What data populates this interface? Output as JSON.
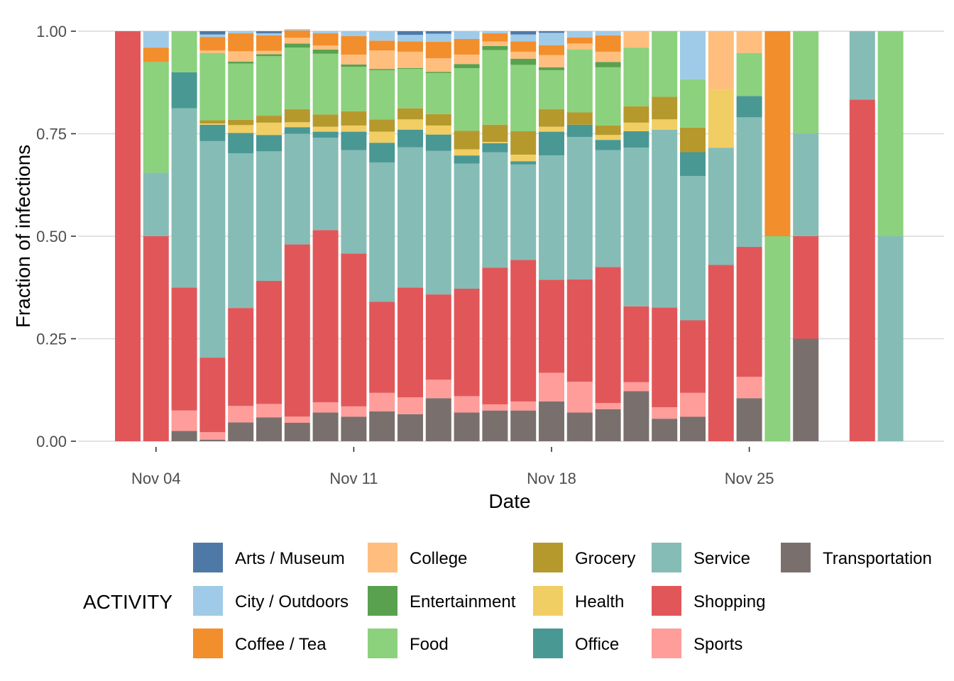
{
  "chart_data": {
    "type": "bar",
    "stacked": true,
    "xlabel": "Date",
    "ylabel": "Fraction of infections",
    "ylim": [
      0,
      1
    ],
    "y_ticks": [
      "0.00",
      "0.25",
      "0.50",
      "0.75",
      "1.00"
    ],
    "y_tick_values": [
      0,
      0.25,
      0.5,
      0.75,
      1.0
    ],
    "x_tick_labels": [
      "Nov 04",
      "Nov 11",
      "Nov 18",
      "Nov 25"
    ],
    "x_tick_days": [
      4,
      11,
      18,
      25
    ],
    "grid": true,
    "legend_title": "ACTIVITY",
    "legend_position": "bottom",
    "stack_order_bottom_to_top": [
      "Transportation",
      "Sports",
      "Shopping",
      "Service",
      "Office",
      "Health",
      "Grocery",
      "Food",
      "Entertainment",
      "College",
      "Coffee / Tea",
      "City / Outdoors",
      "Arts / Museum"
    ],
    "legend_order": [
      "Arts / Museum",
      "City / Outdoors",
      "Coffee / Tea",
      "College",
      "Entertainment",
      "Food",
      "Grocery",
      "Health",
      "Office",
      "Service",
      "Shopping",
      "Sports",
      "Transportation"
    ],
    "colors": {
      "Arts / Museum": "#4e79a7",
      "City / Outdoors": "#a0cbe8",
      "Coffee / Tea": "#f28e2b",
      "College": "#ffbe7d",
      "Entertainment": "#59a14f",
      "Food": "#8cd17d",
      "Grocery": "#b6992d",
      "Health": "#f1ce63",
      "Office": "#499894",
      "Service": "#86bcb6",
      "Shopping": "#e15759",
      "Sports": "#ff9d9a",
      "Transportation": "#79706e"
    },
    "days": [
      {
        "date": "Nov 03",
        "values": {
          "Shopping": 1.0
        }
      },
      {
        "date": "Nov 04",
        "values": {
          "Shopping": 0.5,
          "Service": 0.155,
          "Food": 0.27,
          "Coffee / Tea": 0.035,
          "City / Outdoors": 0.04
        }
      },
      {
        "date": "Nov 05",
        "values": {
          "Transportation": 0.025,
          "Sports": 0.05,
          "Shopping": 0.3,
          "Service": 0.437,
          "Office": 0.088,
          "Food": 0.1
        }
      },
      {
        "date": "Nov 06",
        "values": {
          "Transportation": 0.004,
          "Sports": 0.018,
          "Shopping": 0.182,
          "Service": 0.528,
          "Office": 0.04,
          "Health": 0.003,
          "Grocery": 0.008,
          "Food": 0.164,
          "College": 0.006,
          "Coffee / Tea": 0.033,
          "City / Outdoors": 0.006,
          "Arts / Museum": 0.008
        }
      },
      {
        "date": "Nov 07",
        "values": {
          "Transportation": 0.046,
          "Sports": 0.04,
          "Shopping": 0.239,
          "Service": 0.377,
          "Office": 0.05,
          "Health": 0.019,
          "Grocery": 0.013,
          "Food": 0.137,
          "Entertainment": 0.005,
          "College": 0.025,
          "Coffee / Tea": 0.044,
          "City / Outdoors": 0.005
        }
      },
      {
        "date": "Nov 08",
        "values": {
          "Transportation": 0.058,
          "Sports": 0.033,
          "Shopping": 0.3,
          "Service": 0.316,
          "Office": 0.04,
          "Health": 0.03,
          "Grocery": 0.017,
          "Food": 0.145,
          "Entertainment": 0.005,
          "College": 0.008,
          "Coffee / Tea": 0.038,
          "City / Outdoors": 0.005,
          "Arts / Museum": 0.005
        }
      },
      {
        "date": "Nov 09",
        "values": {
          "Transportation": 0.045,
          "Sports": 0.015,
          "Shopping": 0.42,
          "Service": 0.27,
          "Office": 0.016,
          "Health": 0.012,
          "Grocery": 0.032,
          "Food": 0.15,
          "Entertainment": 0.01,
          "College": 0.014,
          "Coffee / Tea": 0.018,
          "City / Outdoors": 0.003
        }
      },
      {
        "date": "Nov 10",
        "values": {
          "Transportation": 0.07,
          "Sports": 0.025,
          "Shopping": 0.42,
          "Service": 0.225,
          "Office": 0.015,
          "Health": 0.012,
          "Grocery": 0.03,
          "Food": 0.148,
          "Entertainment": 0.01,
          "College": 0.01,
          "Coffee / Tea": 0.03,
          "City / Outdoors": 0.005
        }
      },
      {
        "date": "Nov 11",
        "values": {
          "Transportation": 0.06,
          "Sports": 0.025,
          "Shopping": 0.373,
          "Service": 0.252,
          "Office": 0.045,
          "Health": 0.015,
          "Grocery": 0.035,
          "Food": 0.108,
          "Entertainment": 0.006,
          "College": 0.024,
          "Coffee / Tea": 0.045,
          "City / Outdoors": 0.012
        }
      },
      {
        "date": "Nov 12",
        "values": {
          "Transportation": 0.073,
          "Sports": 0.045,
          "Shopping": 0.222,
          "Service": 0.34,
          "Office": 0.048,
          "Health": 0.027,
          "Grocery": 0.03,
          "Food": 0.12,
          "Entertainment": 0.003,
          "College": 0.045,
          "Coffee / Tea": 0.024,
          "City / Outdoors": 0.023
        }
      },
      {
        "date": "Nov 13",
        "values": {
          "Transportation": 0.066,
          "Sports": 0.041,
          "Shopping": 0.268,
          "Service": 0.342,
          "Office": 0.043,
          "Health": 0.025,
          "Grocery": 0.027,
          "Food": 0.096,
          "Entertainment": 0.002,
          "College": 0.04,
          "Coffee / Tea": 0.025,
          "City / Outdoors": 0.016,
          "Arts / Museum": 0.009
        }
      },
      {
        "date": "Nov 14",
        "values": {
          "Transportation": 0.105,
          "Sports": 0.045,
          "Shopping": 0.208,
          "Service": 0.35,
          "Office": 0.04,
          "Health": 0.022,
          "Grocery": 0.028,
          "Food": 0.1,
          "Entertainment": 0.003,
          "College": 0.033,
          "Coffee / Tea": 0.04,
          "City / Outdoors": 0.02,
          "Arts / Museum": 0.006
        }
      },
      {
        "date": "Nov 15",
        "values": {
          "Transportation": 0.07,
          "Sports": 0.04,
          "Shopping": 0.262,
          "Service": 0.305,
          "Office": 0.02,
          "Health": 0.015,
          "Grocery": 0.045,
          "Food": 0.153,
          "Entertainment": 0.01,
          "College": 0.023,
          "Coffee / Tea": 0.038,
          "City / Outdoors": 0.019
        }
      },
      {
        "date": "Nov 16",
        "values": {
          "Transportation": 0.075,
          "Sports": 0.015,
          "Shopping": 0.333,
          "Service": 0.282,
          "Office": 0.022,
          "Health": 0.003,
          "Grocery": 0.042,
          "Food": 0.182,
          "Entertainment": 0.01,
          "College": 0.011,
          "Coffee / Tea": 0.02,
          "City / Outdoors": 0.005
        }
      },
      {
        "date": "Nov 17",
        "values": {
          "Transportation": 0.075,
          "Sports": 0.022,
          "Shopping": 0.345,
          "Service": 0.233,
          "Office": 0.008,
          "Health": 0.016,
          "Grocery": 0.057,
          "Food": 0.162,
          "Entertainment": 0.015,
          "College": 0.017,
          "Coffee / Tea": 0.025,
          "City / Outdoors": 0.017,
          "Arts / Museum": 0.008
        }
      },
      {
        "date": "Nov 18",
        "values": {
          "Transportation": 0.097,
          "Sports": 0.07,
          "Shopping": 0.227,
          "Service": 0.303,
          "Office": 0.058,
          "Health": 0.012,
          "Grocery": 0.043,
          "Food": 0.095,
          "Entertainment": 0.007,
          "College": 0.03,
          "Coffee / Tea": 0.024,
          "City / Outdoors": 0.03,
          "Arts / Museum": 0.004
        }
      },
      {
        "date": "Nov 19",
        "values": {
          "Transportation": 0.07,
          "Sports": 0.075,
          "Shopping": 0.25,
          "Service": 0.347,
          "Office": 0.03,
          "Grocery": 0.03,
          "Food": 0.153,
          "College": 0.015,
          "Coffee / Tea": 0.015,
          "City / Outdoors": 0.015
        }
      },
      {
        "date": "Nov 20",
        "values": {
          "Transportation": 0.078,
          "Sports": 0.015,
          "Shopping": 0.332,
          "Service": 0.285,
          "Office": 0.025,
          "Health": 0.012,
          "Grocery": 0.023,
          "Food": 0.142,
          "Entertainment": 0.013,
          "College": 0.025,
          "Coffee / Tea": 0.04,
          "City / Outdoors": 0.01
        }
      },
      {
        "date": "Nov 21",
        "values": {
          "Transportation": 0.122,
          "Sports": 0.022,
          "Shopping": 0.185,
          "Service": 0.387,
          "Office": 0.04,
          "Health": 0.021,
          "Grocery": 0.04,
          "Food": 0.143,
          "College": 0.04
        }
      },
      {
        "date": "Nov 22",
        "values": {
          "Transportation": 0.055,
          "Sports": 0.028,
          "Shopping": 0.243,
          "Service": 0.434,
          "Office": 0,
          "Health": 0.025,
          "Grocery": 0.055,
          "Food": 0.16
        }
      },
      {
        "date": "Nov 23",
        "values": {
          "Transportation": 0.06,
          "Sports": 0.058,
          "Shopping": 0.177,
          "Service": 0.352,
          "Office": 0.058,
          "Grocery": 0.06,
          "Food": 0.118,
          "City / Outdoors": 0.117
        }
      },
      {
        "date": "Nov 24",
        "values": {
          "Shopping": 0.43,
          "Service": 0.286,
          "Health": 0.142,
          "College": 0.142
        }
      },
      {
        "date": "Nov 25",
        "values": {
          "Transportation": 0.105,
          "Sports": 0.052,
          "Shopping": 0.317,
          "Service": 0.316,
          "Office": 0.052,
          "Food": 0.105,
          "College": 0.053
        }
      },
      {
        "date": "Nov 26",
        "values": {
          "Food": 0.5,
          "Coffee / Tea": 0.5
        }
      },
      {
        "date": "Nov 27",
        "values": {
          "Transportation": 0.25,
          "Shopping": 0.25,
          "Service": 0.25,
          "Food": 0.25
        }
      },
      {
        "date": "Nov 28",
        "values": {}
      },
      {
        "date": "Nov 29",
        "values": {
          "Shopping": 0.833,
          "Service": 0.167
        }
      },
      {
        "date": "Nov 30",
        "values": {
          "Service": 0.5,
          "Food": 0.5
        }
      }
    ]
  }
}
